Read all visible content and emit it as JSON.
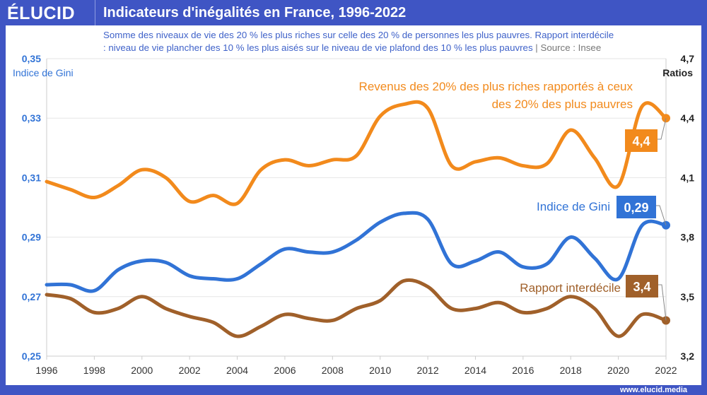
{
  "header": {
    "logo": "ÉLUCID",
    "title": "Indicateurs d'inégalités en France, 1996-2022"
  },
  "subtitle": {
    "line1": "Somme des niveaux de vie des 20 % les plus riches sur celle des 20 % de personnes les plus pauvres. Rapport interdécile",
    "line2": ": niveau de vie plancher des 10 % les plus aisés sur le niveau de vie plafond des 10 % les plus pauvres",
    "separator": "|",
    "source": "Source : Insee"
  },
  "footer": {
    "url": "www.elucid.media"
  },
  "colors": {
    "brand": "#3f55c4",
    "gini": "#3173d6",
    "top20": "#f28a1c",
    "interdecile": "#a0602a"
  },
  "chart_data": {
    "type": "line",
    "x": [
      1996,
      1997,
      1998,
      1999,
      2000,
      2001,
      2002,
      2003,
      2004,
      2005,
      2006,
      2007,
      2008,
      2009,
      2010,
      2011,
      2012,
      2013,
      2014,
      2015,
      2016,
      2017,
      2018,
      2019,
      2020,
      2021,
      2022
    ],
    "left_axis": {
      "label": "Indice de Gini",
      "range": [
        0.25,
        0.35
      ],
      "ticks": [
        "0,25",
        "0,27",
        "0,29",
        "0,31",
        "0,33",
        "0,35"
      ]
    },
    "right_axis": {
      "label": "Ratios",
      "range": [
        3.2,
        4.7
      ],
      "ticks": [
        "3,2",
        "3,5",
        "3,8",
        "4,1",
        "4,4",
        "4,7"
      ]
    },
    "x_ticks": [
      "1996",
      "1998",
      "2000",
      "2002",
      "2004",
      "2006",
      "2008",
      "2010",
      "2012",
      "2014",
      "2016",
      "2018",
      "2020",
      "2022"
    ],
    "grid": true,
    "series": [
      {
        "name": "Revenus des 20% des plus riches rapportés à ceux des 20% des plus pauvres",
        "name_line1": "Revenus des 20% des plus riches rapportés à ceux",
        "name_line2": "des 20% des plus pauvres",
        "axis": "right",
        "color": "#f28a1c",
        "last_label": "4,4",
        "values": [
          4.08,
          4.04,
          4.0,
          4.06,
          4.14,
          4.1,
          3.98,
          4.01,
          3.97,
          4.14,
          4.19,
          4.16,
          4.19,
          4.21,
          4.41,
          4.47,
          4.45,
          4.16,
          4.18,
          4.2,
          4.16,
          4.17,
          4.34,
          4.2,
          4.06,
          4.46,
          4.4
        ]
      },
      {
        "name": "Indice de Gini",
        "axis": "left",
        "color": "#3173d6",
        "last_label": "0,29",
        "values": [
          0.274,
          0.274,
          0.272,
          0.279,
          0.282,
          0.2815,
          0.277,
          0.276,
          0.276,
          0.281,
          0.286,
          0.285,
          0.285,
          0.289,
          0.295,
          0.298,
          0.296,
          0.281,
          0.282,
          0.285,
          0.28,
          0.281,
          0.29,
          0.283,
          0.276,
          0.294,
          0.294
        ]
      },
      {
        "name": "Rapport interdécile",
        "axis": "right",
        "color": "#a0602a",
        "last_label": "3,4",
        "values": [
          3.51,
          3.49,
          3.42,
          3.44,
          3.5,
          3.44,
          3.4,
          3.37,
          3.3,
          3.35,
          3.41,
          3.39,
          3.38,
          3.44,
          3.48,
          3.58,
          3.55,
          3.44,
          3.44,
          3.47,
          3.42,
          3.44,
          3.5,
          3.44,
          3.3,
          3.41,
          3.38
        ]
      }
    ]
  }
}
